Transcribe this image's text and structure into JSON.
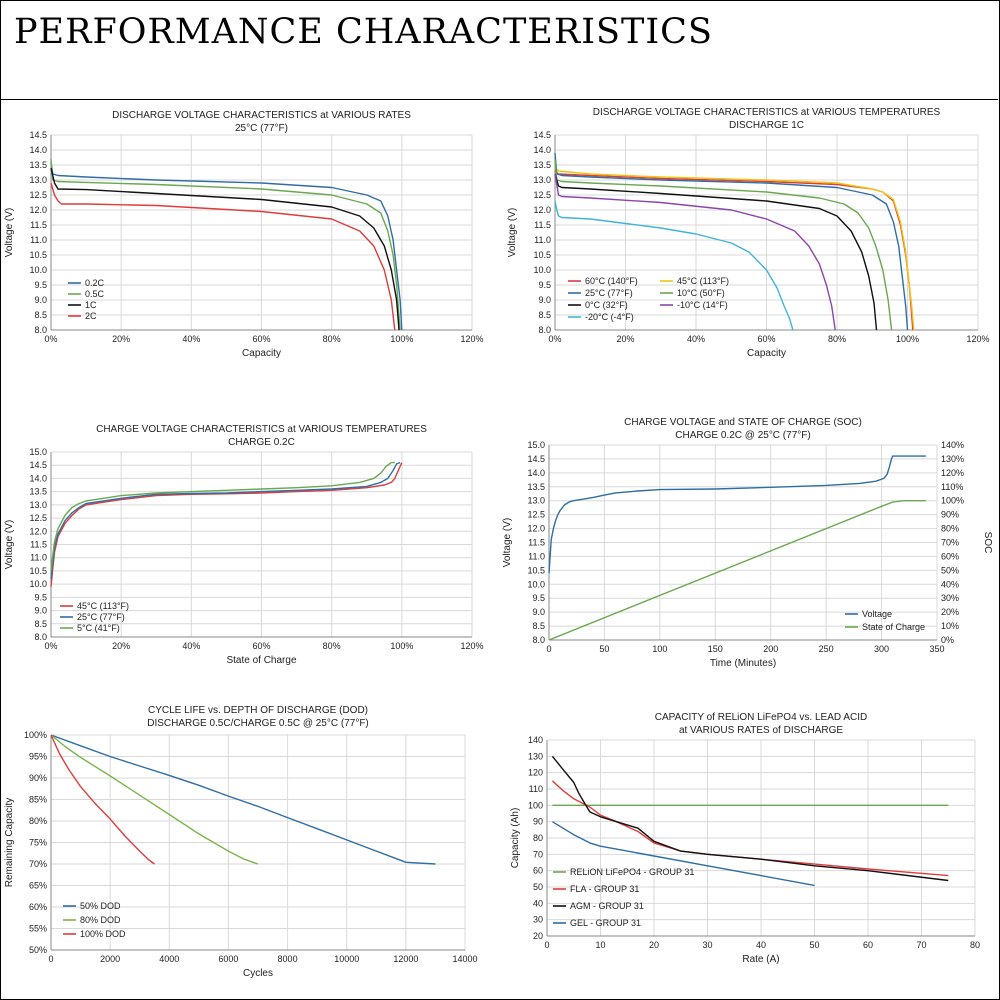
{
  "page": {
    "title": "PERFORMANCE CHARACTERISTICS"
  },
  "chart_data": [
    {
      "type": "line",
      "title": "DISCHARGE VOLTAGE CHARACTERISTICS at VARIOUS RATES",
      "subtitle": "25°C (77°F)",
      "xlabel": "Capacity",
      "ylabel": "Voltage (V)",
      "xlim": [
        0,
        120
      ],
      "ylim": [
        8.0,
        14.5
      ],
      "xticks": [
        "0%",
        "20%",
        "40%",
        "60%",
        "80%",
        "100%",
        "120%"
      ],
      "yticks": [
        "8.0",
        "8.5",
        "9.0",
        "9.5",
        "10.0",
        "10.5",
        "11.0",
        "11.5",
        "12.0",
        "12.5",
        "13.0",
        "13.5",
        "14.0",
        "14.5"
      ],
      "legend": "bottom-left",
      "series": [
        {
          "name": "0.2C",
          "color": "#2e6ea6",
          "x": [
            0,
            0.5,
            2,
            10,
            30,
            60,
            80,
            90,
            94,
            96,
            97.5,
            98.5,
            99.5,
            100
          ],
          "y": [
            13.6,
            13.2,
            13.15,
            13.1,
            13.0,
            12.9,
            12.75,
            12.5,
            12.3,
            11.8,
            11.0,
            10.0,
            9.0,
            8.0
          ]
        },
        {
          "name": "0.5C",
          "color": "#6aa84f",
          "x": [
            0,
            0.5,
            2,
            10,
            30,
            60,
            80,
            90,
            94,
            96,
            97.5,
            98.5,
            99.5
          ],
          "y": [
            13.7,
            13.0,
            12.95,
            12.92,
            12.85,
            12.7,
            12.5,
            12.2,
            11.9,
            11.3,
            10.5,
            9.5,
            8.0
          ]
        },
        {
          "name": "1C",
          "color": "#111111",
          "x": [
            0,
            1,
            2,
            10,
            30,
            60,
            80,
            88,
            92,
            95,
            97,
            98.5,
            99.2
          ],
          "y": [
            13.4,
            12.9,
            12.7,
            12.68,
            12.55,
            12.35,
            12.1,
            11.8,
            11.4,
            10.8,
            10.0,
            9.0,
            8.0
          ]
        },
        {
          "name": "2C",
          "color": "#e03c3c",
          "x": [
            0,
            1,
            2,
            3,
            5,
            10,
            30,
            60,
            80,
            88,
            92,
            95,
            97,
            98
          ],
          "y": [
            12.9,
            12.5,
            12.3,
            12.2,
            12.2,
            12.2,
            12.15,
            11.95,
            11.7,
            11.3,
            10.8,
            10.0,
            9.0,
            8.0
          ]
        }
      ]
    },
    {
      "type": "line",
      "title": "DISCHARGE VOLTAGE CHARACTERISTICS at VARIOUS TEMPERATURES",
      "subtitle": "DISCHARGE 1C",
      "xlabel": "Capacity",
      "ylabel": "Voltage (V)",
      "xlim": [
        0,
        120
      ],
      "ylim": [
        8.0,
        14.5
      ],
      "xticks": [
        "0%",
        "20%",
        "40%",
        "60%",
        "80%",
        "100%",
        "120%"
      ],
      "yticks": [
        "8.0",
        "8.5",
        "9.0",
        "9.5",
        "10.0",
        "10.5",
        "11.0",
        "11.5",
        "12.0",
        "12.5",
        "13.0",
        "13.5",
        "14.0",
        "14.5"
      ],
      "legend": "bottom-left",
      "series": [
        {
          "name": "60°C  (140°F)",
          "color": "#e03c3c",
          "x": [
            0,
            1,
            10,
            30,
            60,
            80,
            90,
            93,
            96,
            98,
            99.5,
            100.5,
            101,
            101.5
          ],
          "y": [
            13.3,
            13.2,
            13.15,
            13.05,
            12.95,
            12.85,
            12.7,
            12.6,
            12.3,
            11.5,
            10.5,
            9.5,
            8.8,
            8.0
          ]
        },
        {
          "name": "45°C  (113°F)",
          "color": "#f2c40f",
          "x": [
            0,
            1,
            10,
            30,
            60,
            80,
            90,
            93,
            96,
            98,
            99.5,
            100.5,
            101.2,
            101.8
          ],
          "y": [
            13.4,
            13.3,
            13.2,
            13.1,
            13.0,
            12.9,
            12.7,
            12.6,
            12.35,
            11.6,
            10.6,
            9.5,
            8.8,
            8.0
          ]
        },
        {
          "name": "25°C  (77°F)",
          "color": "#2e6ea6",
          "x": [
            0,
            0.5,
            2,
            10,
            30,
            60,
            80,
            90,
            94,
            96,
            97.5,
            98.5,
            99.5,
            100
          ],
          "y": [
            13.9,
            13.2,
            13.15,
            13.1,
            13.0,
            12.9,
            12.75,
            12.5,
            12.2,
            11.6,
            10.8,
            9.8,
            8.8,
            8.0
          ]
        },
        {
          "name": "10°C  (50°F)",
          "color": "#6aa84f",
          "x": [
            0,
            0.5,
            2,
            10,
            30,
            60,
            75,
            82,
            86,
            89,
            91,
            93,
            94.5,
            95.5
          ],
          "y": [
            13.7,
            13.0,
            12.95,
            12.9,
            12.8,
            12.6,
            12.4,
            12.2,
            11.9,
            11.4,
            10.8,
            10.0,
            9.0,
            8.0
          ]
        },
        {
          "name": "0°C    (32°F)",
          "color": "#111111",
          "x": [
            0,
            1,
            2,
            10,
            30,
            60,
            75,
            80,
            84,
            87,
            89,
            90.5,
            91.2
          ],
          "y": [
            13.2,
            12.8,
            12.75,
            12.7,
            12.55,
            12.3,
            12.05,
            11.8,
            11.3,
            10.6,
            9.8,
            8.9,
            8.0
          ]
        },
        {
          "name": "-10°C  (14°F)",
          "color": "#8e44ad",
          "x": [
            0,
            1,
            2,
            10,
            30,
            50,
            60,
            68,
            72,
            75,
            77,
            78.5,
            79.5
          ],
          "y": [
            13.2,
            12.5,
            12.45,
            12.4,
            12.25,
            12.0,
            11.7,
            11.3,
            10.8,
            10.2,
            9.5,
            8.8,
            8.0
          ]
        },
        {
          "name": "-20°C  (-4°F)",
          "color": "#3fb5d7",
          "x": [
            0,
            0.5,
            1,
            2,
            10,
            20,
            30,
            40,
            50,
            55,
            60,
            63,
            65,
            66.5,
            67.5
          ],
          "y": [
            12.3,
            12.0,
            11.8,
            11.75,
            11.7,
            11.55,
            11.4,
            11.2,
            10.9,
            10.6,
            10.0,
            9.4,
            8.8,
            8.4,
            8.0
          ]
        }
      ]
    },
    {
      "type": "line",
      "title": "CHARGE VOLTAGE CHARACTERISTICS at VARIOUS TEMPERATURES",
      "subtitle": "CHARGE 0.2C",
      "xlabel": "State of Charge",
      "ylabel": "Voltage (V)",
      "xlim": [
        0,
        120
      ],
      "ylim": [
        8.0,
        15.0
      ],
      "xticks": [
        "0%",
        "20%",
        "40%",
        "60%",
        "80%",
        "100%",
        "120%"
      ],
      "yticks": [
        "8.0",
        "8.5",
        "9.0",
        "9.5",
        "10.0",
        "10.5",
        "11.0",
        "11.5",
        "12.0",
        "12.5",
        "13.0",
        "13.5",
        "14.0",
        "14.5",
        "15.0"
      ],
      "legend": "bottom-left",
      "series": [
        {
          "name": "45°C  (113°F)",
          "color": "#e03c3c",
          "x": [
            0,
            0.5,
            1,
            2,
            4,
            6,
            8,
            10,
            15,
            20,
            30,
            40,
            50,
            60,
            70,
            80,
            90,
            95,
            97,
            98,
            99,
            100
          ],
          "y": [
            9.9,
            10.6,
            11.2,
            11.8,
            12.3,
            12.6,
            12.85,
            13.0,
            13.1,
            13.2,
            13.35,
            13.4,
            13.42,
            13.45,
            13.5,
            13.55,
            13.65,
            13.75,
            13.85,
            14.0,
            14.3,
            14.6
          ]
        },
        {
          "name": "25°C  (77°F)",
          "color": "#2e6ea6",
          "x": [
            0,
            0.5,
            1,
            2,
            4,
            6,
            8,
            10,
            15,
            20,
            30,
            40,
            50,
            60,
            70,
            80,
            90,
            94,
            96,
            97.5,
            98.5,
            99.5
          ],
          "y": [
            10.2,
            10.8,
            11.4,
            11.9,
            12.4,
            12.7,
            12.9,
            13.05,
            13.15,
            13.25,
            13.4,
            13.43,
            13.45,
            13.5,
            13.55,
            13.6,
            13.7,
            13.85,
            14.0,
            14.3,
            14.55,
            14.6
          ]
        },
        {
          "name": "5°C  (41°F)",
          "color": "#6aa84f",
          "x": [
            0,
            0.5,
            1,
            2,
            4,
            6,
            8,
            10,
            15,
            20,
            30,
            40,
            50,
            60,
            70,
            80,
            88,
            92,
            94,
            95.5,
            97,
            98
          ],
          "y": [
            10.5,
            11.1,
            11.6,
            12.1,
            12.6,
            12.9,
            13.05,
            13.15,
            13.25,
            13.35,
            13.45,
            13.5,
            13.55,
            13.6,
            13.65,
            13.72,
            13.85,
            14.0,
            14.2,
            14.45,
            14.6,
            14.6
          ]
        }
      ]
    },
    {
      "type": "line",
      "title": "CHARGE VOLTAGE and STATE OF CHARGE (SOC)",
      "subtitle": "CHARGE 0.2C @ 25°C (77°F)",
      "xlabel": "Time (Minutes)",
      "ylabel": "Voltage (V)",
      "y2label": "SOC",
      "xlim": [
        0,
        350
      ],
      "ylim": [
        8.0,
        15.0
      ],
      "y2lim": [
        0,
        140
      ],
      "xticks": [
        "0",
        "50",
        "100",
        "150",
        "200",
        "250",
        "300",
        "350"
      ],
      "yticks": [
        "8.0",
        "8.5",
        "9.0",
        "9.5",
        "10.0",
        "10.5",
        "11.0",
        "11.5",
        "12.0",
        "12.5",
        "13.0",
        "13.5",
        "14.0",
        "14.5",
        "15.0"
      ],
      "y2ticks": [
        "0%",
        "10%",
        "20%",
        "30%",
        "40%",
        "50%",
        "60%",
        "70%",
        "80%",
        "90%",
        "100%",
        "110%",
        "120%",
        "130%",
        "140%"
      ],
      "legend": "bottom-right",
      "series": [
        {
          "name": "Voltage",
          "color": "#2e6ea6",
          "axis": "left",
          "x": [
            0,
            1,
            2,
            4,
            6,
            8,
            10,
            14,
            18,
            22,
            25,
            30,
            40,
            50,
            60,
            80,
            100,
            150,
            200,
            250,
            280,
            295,
            302,
            305,
            307,
            309,
            310,
            320,
            340
          ],
          "y": [
            10.4,
            11.0,
            11.6,
            12.0,
            12.3,
            12.5,
            12.65,
            12.85,
            12.95,
            13.0,
            13.02,
            13.05,
            13.12,
            13.2,
            13.28,
            13.35,
            13.4,
            13.42,
            13.48,
            13.55,
            13.62,
            13.7,
            13.8,
            13.95,
            14.2,
            14.5,
            14.6,
            14.6,
            14.6
          ]
        },
        {
          "name": "State of Charge",
          "color": "#6aa84f",
          "axis": "right",
          "x": [
            0,
            300,
            310,
            320,
            340
          ],
          "y": [
            0,
            96,
            99,
            100,
            100
          ]
        }
      ]
    },
    {
      "type": "line",
      "title": "CYCLE LIFE vs. DEPTH OF DISCHARGE (DOD)",
      "subtitle": "DISCHARGE 0.5C/CHARGE 0.5C @ 25°C (77°F)",
      "xlabel": "Cycles",
      "ylabel": "Remaining Capacity",
      "xlim": [
        0,
        14000
      ],
      "ylim": [
        50,
        100
      ],
      "xticks": [
        "0",
        "2000",
        "4000",
        "6000",
        "8000",
        "10000",
        "12000",
        "14000"
      ],
      "yticks": [
        "50%",
        "55%",
        "60%",
        "65%",
        "70%",
        "75%",
        "80%",
        "85%",
        "90%",
        "95%",
        "100%"
      ],
      "legend": "bottom-left",
      "series": [
        {
          "name": "50% DOD",
          "color": "#2e6ea6",
          "x": [
            0,
            1000,
            2000,
            3000,
            4000,
            5000,
            6000,
            7000,
            8000,
            9000,
            10000,
            11000,
            12000,
            13000
          ],
          "y": [
            100,
            97.5,
            95.0,
            92.8,
            90.6,
            88.3,
            85.8,
            83.4,
            80.8,
            78.2,
            75.6,
            73.0,
            70.4,
            70.0
          ]
        },
        {
          "name": "80% DOD",
          "color": "#7ab648",
          "x": [
            0,
            500,
            1000,
            2000,
            3000,
            4000,
            5000,
            6000,
            6500,
            7000
          ],
          "y": [
            100,
            97.2,
            94.8,
            90.5,
            86.0,
            81.5,
            77.0,
            73.0,
            71.2,
            70.0
          ]
        },
        {
          "name": "100% DOD",
          "color": "#e03c3c",
          "x": [
            0,
            300,
            600,
            1000,
            1500,
            2000,
            2500,
            3000,
            3300,
            3500
          ],
          "y": [
            100,
            95.5,
            92.0,
            88.0,
            84.0,
            80.5,
            76.5,
            73.0,
            71.0,
            70.0
          ]
        }
      ]
    },
    {
      "type": "line",
      "title": "CAPACITY of RELiON LiFePO4 vs. LEAD ACID",
      "subtitle": "at VARIOUS RATES of DISCHARGE",
      "xlabel": "Rate (A)",
      "ylabel": "Capacity (Ah)",
      "xlim": [
        0,
        80
      ],
      "ylim": [
        20,
        140
      ],
      "xticks": [
        "0",
        "10",
        "20",
        "30",
        "40",
        "50",
        "60",
        "70",
        "80"
      ],
      "yticks": [
        "20",
        "30",
        "40",
        "50",
        "60",
        "70",
        "80",
        "90",
        "100",
        "110",
        "120",
        "130",
        "140"
      ],
      "legend": "bottom-left",
      "series": [
        {
          "name": "RELiON LiFePO4 - GROUP 31",
          "color": "#6aa84f",
          "x": [
            1,
            75
          ],
          "y": [
            100,
            100
          ]
        },
        {
          "name": "FLA - GROUP 31",
          "color": "#e03c3c",
          "x": [
            1,
            3,
            5,
            8,
            10,
            13,
            17,
            20,
            25,
            30,
            40,
            50,
            60,
            75
          ],
          "y": [
            115,
            109,
            104,
            99,
            94,
            90,
            84,
            77,
            72,
            70,
            67,
            64,
            61,
            57
          ]
        },
        {
          "name": "AGM - GROUP 31",
          "color": "#111111",
          "x": [
            1,
            3,
            5,
            6,
            8,
            10,
            13,
            17,
            20,
            25,
            30,
            40,
            50,
            60,
            75
          ],
          "y": [
            130,
            122,
            114,
            107,
            96,
            93,
            90,
            86,
            78,
            72,
            70,
            67,
            63,
            60,
            54
          ]
        },
        {
          "name": "GEL - GROUP 31",
          "color": "#2e6ea6",
          "x": [
            1,
            3,
            5,
            8,
            10,
            15,
            20,
            30,
            40,
            50
          ],
          "y": [
            90,
            86,
            82,
            77,
            75,
            72,
            69,
            63,
            57,
            51
          ]
        }
      ]
    }
  ]
}
